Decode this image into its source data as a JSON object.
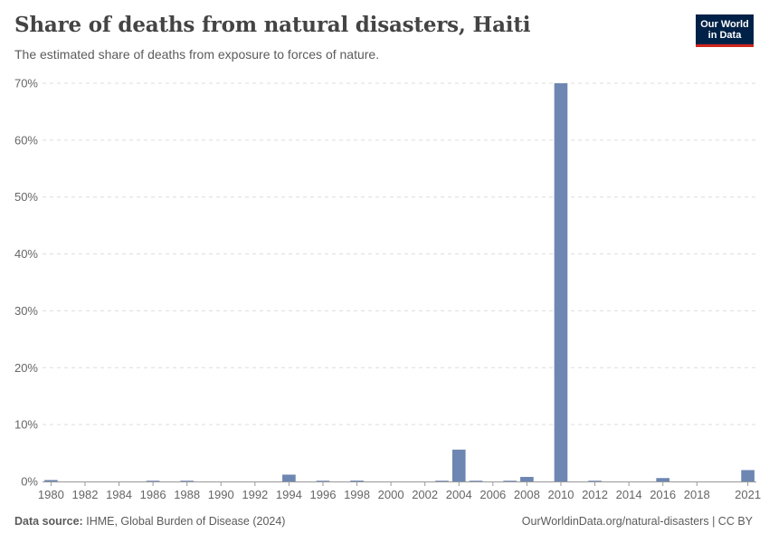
{
  "header": {
    "title": "Share of deaths from natural disasters, Haiti",
    "subtitle": "The estimated share of deaths from exposure to forces of nature."
  },
  "logo": {
    "line1": "Our World",
    "line2": "in Data"
  },
  "footer": {
    "source_label": "Data source:",
    "source_text": "IHME, Global Burden of Disease (2024)",
    "url": "OurWorldinData.org/natural-disasters | CC BY"
  },
  "colors": {
    "bar": "#6d87b2",
    "grid": "#dddddd",
    "axis": "#999999",
    "text": "#666666"
  },
  "chart_data": {
    "type": "bar",
    "title": "Share of deaths from natural disasters, Haiti",
    "xlabel": "",
    "ylabel": "",
    "ylim": [
      0,
      70
    ],
    "y_ticks": [
      0,
      10,
      20,
      30,
      40,
      50,
      60,
      70
    ],
    "y_tick_labels": [
      "0%",
      "10%",
      "20%",
      "30%",
      "40%",
      "50%",
      "60%",
      "70%"
    ],
    "x_tick_labels": [
      "1980",
      "1982",
      "1984",
      "1986",
      "1988",
      "1990",
      "1992",
      "1994",
      "1996",
      "1998",
      "2000",
      "2002",
      "2004",
      "2006",
      "2008",
      "2010",
      "2012",
      "2014",
      "2016",
      "2018",
      "2021"
    ],
    "grid": true,
    "unit": "%",
    "series": [
      {
        "name": "Share of deaths from natural disasters",
        "x": [
          1980,
          1981,
          1982,
          1983,
          1984,
          1985,
          1986,
          1987,
          1988,
          1989,
          1990,
          1991,
          1992,
          1993,
          1994,
          1995,
          1996,
          1997,
          1998,
          1999,
          2000,
          2001,
          2002,
          2003,
          2004,
          2005,
          2006,
          2007,
          2008,
          2009,
          2010,
          2011,
          2012,
          2013,
          2014,
          2015,
          2016,
          2017,
          2018,
          2019,
          2020,
          2021
        ],
        "values": [
          0.25,
          0,
          0,
          0,
          0,
          0,
          0.12,
          0,
          0.08,
          0,
          0,
          0,
          0,
          0,
          1.2,
          0,
          0.05,
          0,
          0.15,
          0,
          0,
          0,
          0,
          0.05,
          5.6,
          0.05,
          0,
          0.1,
          0.8,
          0,
          70,
          0,
          0.1,
          0,
          0,
          0,
          0.6,
          0,
          0,
          0,
          0,
          2.0
        ]
      }
    ]
  }
}
